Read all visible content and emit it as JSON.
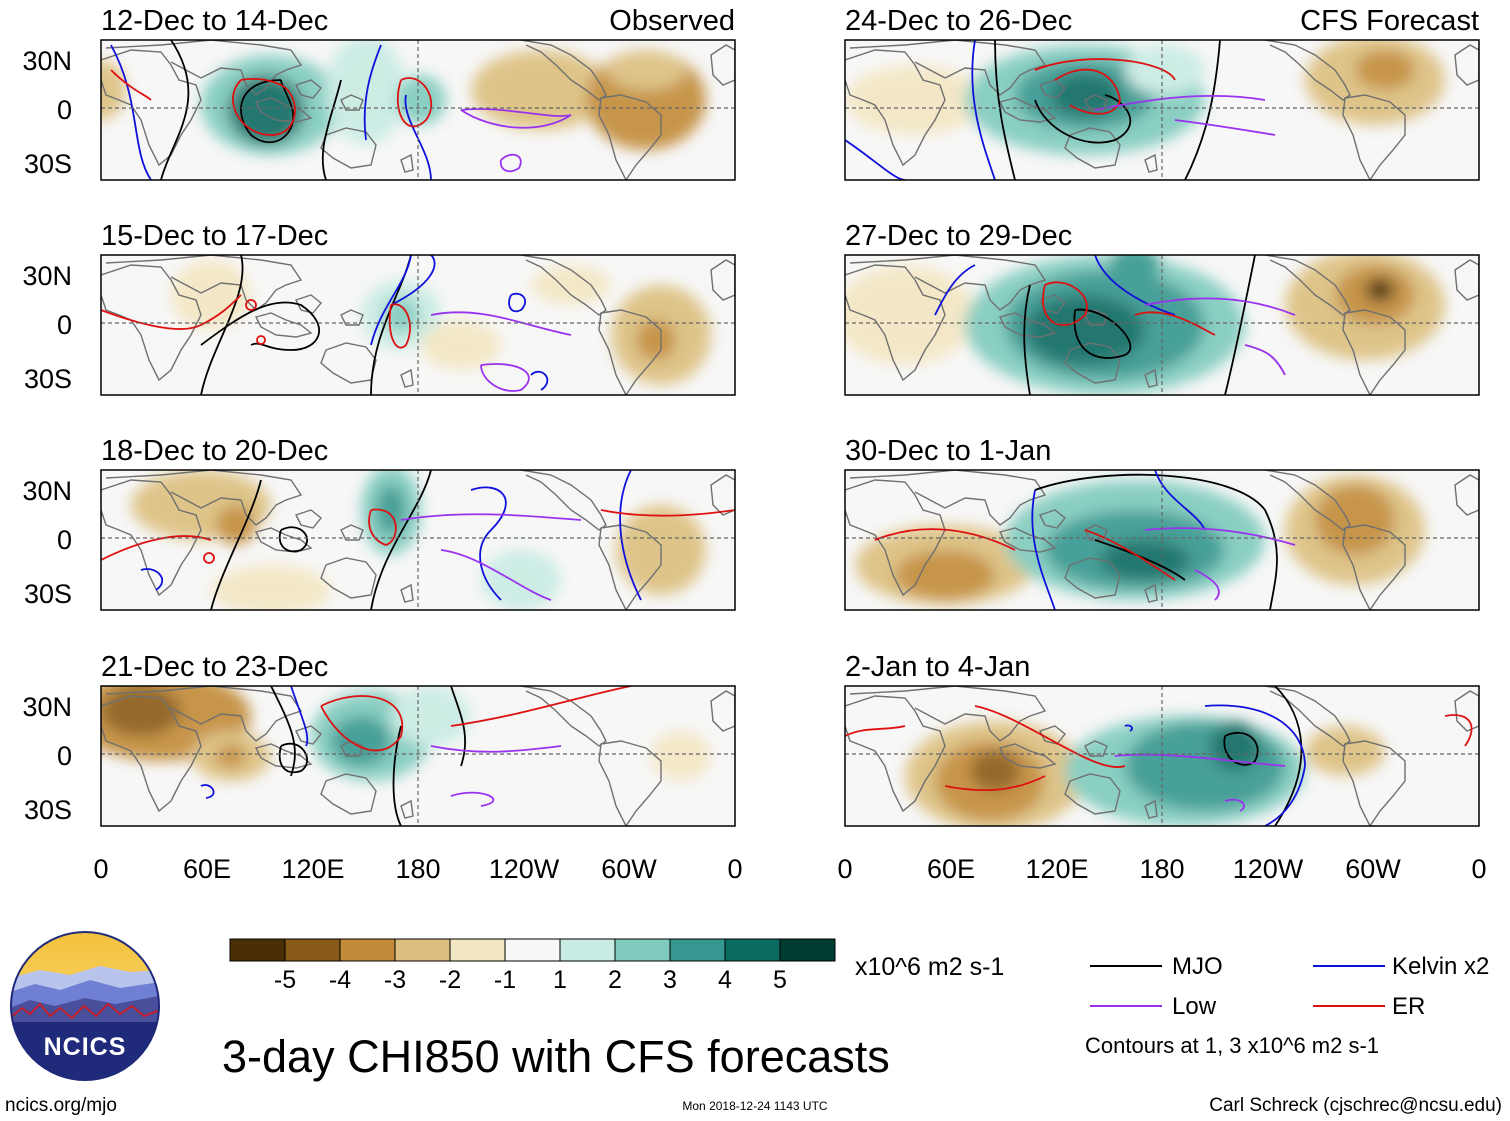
{
  "panels": [
    {
      "period": "12-Dec to 14-Dec",
      "label": "Observed"
    },
    {
      "period": "15-Dec to 17-Dec",
      "label": ""
    },
    {
      "period": "18-Dec to 20-Dec",
      "label": ""
    },
    {
      "period": "21-Dec to 23-Dec",
      "label": ""
    },
    {
      "period": "24-Dec to 26-Dec",
      "label": "CFS Forecast"
    },
    {
      "period": "27-Dec to 29-Dec",
      "label": ""
    },
    {
      "period": "30-Dec to 1-Jan",
      "label": ""
    },
    {
      "period": "2-Jan to 4-Jan",
      "label": ""
    }
  ],
  "lat_labels": [
    "30N",
    "0",
    "30S"
  ],
  "lon_labels": [
    "0",
    "60E",
    "120E",
    "180",
    "120W",
    "60W",
    "0"
  ],
  "colorbar": {
    "colors": [
      "#4a2f06",
      "#8a5a19",
      "#c28b39",
      "#dcbf7e",
      "#f3e6c2",
      "#f7f7f7",
      "#c8ebe3",
      "#7fcbbd",
      "#35978f",
      "#0b6b62",
      "#003c30"
    ],
    "labels": [
      "-5",
      "-4",
      "-3",
      "-2",
      "-1",
      "1",
      "2",
      "3",
      "4",
      "5"
    ],
    "units": "x10^6 m2 s-1"
  },
  "legend": {
    "items": [
      {
        "name": "MJO",
        "color": "#000000"
      },
      {
        "name": "Kelvin x2",
        "color": "#1010dd"
      },
      {
        "name": "Low",
        "color": "#9933ee"
      },
      {
        "name": "ER",
        "color": "#dd1111"
      }
    ],
    "note": "Contours at 1, 3 x10^6 m2 s-1"
  },
  "title": "3-day CHI850 with CFS forecasts",
  "logo_text": "NCICS",
  "url": "ncics.org/mjo",
  "timestamp": "Mon 2018-12-24 1143 UTC",
  "credit": "Carl Schreck (cjschrec@ncsu.edu)",
  "style": {
    "positive": "#35978f",
    "negative": "#c28b39",
    "mjo": "#000000",
    "kelvin": "#1010dd",
    "low": "#9933ee",
    "er": "#dd1111"
  }
}
